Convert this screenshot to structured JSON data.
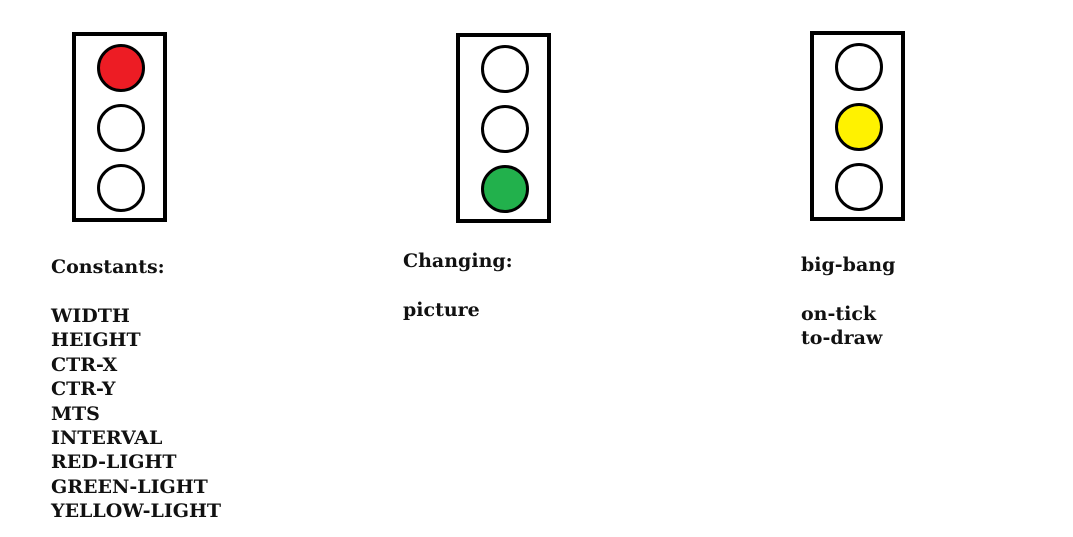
{
  "colors": {
    "red": "#ed1c24",
    "green": "#22b14c",
    "yellow": "#fff200",
    "off": "#ffffff"
  },
  "lights": [
    {
      "active": "red"
    },
    {
      "active": "green"
    },
    {
      "active": "yellow"
    }
  ],
  "columns": [
    {
      "heading": "Constants:",
      "items": [
        "WIDTH",
        "HEIGHT",
        "CTR-X",
        "CTR-Y",
        "MTS",
        "INTERVAL",
        "RED-LIGHT",
        "GREEN-LIGHT",
        "YELLOW-LIGHT"
      ]
    },
    {
      "heading": "Changing:",
      "items": [
        "picture"
      ]
    },
    {
      "heading": "big-bang",
      "items": [
        "on-tick",
        "to-draw"
      ]
    }
  ]
}
